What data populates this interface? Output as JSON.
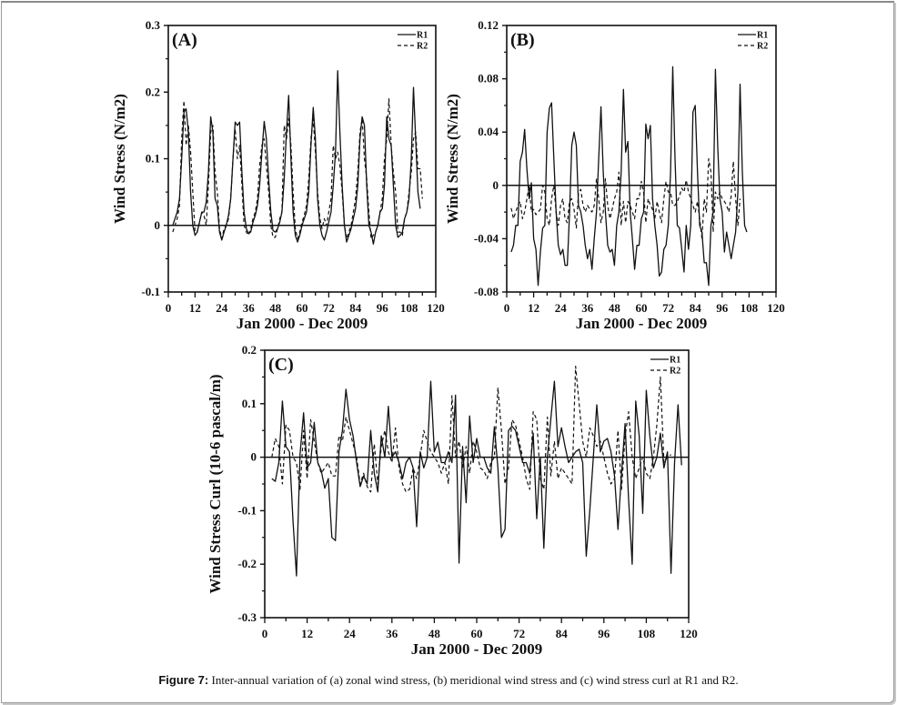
{
  "caption": {
    "figure_label": "Figure 7:",
    "text": " Inter-annual variation of (a) zonal wind stress, (b) meridional wind stress and (c) wind stress curl at R1 and R2."
  },
  "chart_data": [
    {
      "id": "A",
      "type": "line",
      "panel_label": "(A)",
      "title": "",
      "xlabel": "Jan 2000 - Dec 2009",
      "ylabel": "Wind Stress (N/m2)",
      "xlim": [
        0,
        120
      ],
      "ylim": [
        -0.1,
        0.3
      ],
      "xticks": [
        0,
        12,
        24,
        36,
        48,
        60,
        72,
        84,
        96,
        108,
        120
      ],
      "yticks": [
        -0.1,
        0,
        0.1,
        0.2,
        0.3
      ],
      "ytick_labels": [
        "-0.1",
        "0",
        "0.1",
        "0.2",
        "0.3"
      ],
      "zero_line": true,
      "legend": {
        "position": "top-right",
        "entries": [
          {
            "name": "R1",
            "style": "solid"
          },
          {
            "name": "R2",
            "style": "dashed"
          }
        ]
      },
      "series": [
        {
          "name": "R1",
          "style": "solid",
          "x_start": 2,
          "values": [
            0.0,
            0.01,
            0.02,
            0.04,
            0.1,
            0.17,
            0.175,
            0.14,
            0.05,
            0.0,
            -0.015,
            -0.01,
            0.005,
            0.02,
            0.02,
            0.035,
            0.08,
            0.163,
            0.14,
            0.04,
            0.03,
            -0.01,
            -0.022,
            -0.01,
            0.0,
            0.015,
            0.04,
            0.1,
            0.155,
            0.15,
            0.155,
            0.08,
            0.02,
            -0.005,
            -0.012,
            -0.01,
            0.005,
            0.015,
            0.03,
            0.06,
            0.11,
            0.156,
            0.13,
            0.07,
            0.02,
            -0.008,
            -0.01,
            -0.005,
            0.005,
            0.02,
            0.07,
            0.14,
            0.195,
            0.1,
            0.02,
            -0.015,
            -0.025,
            -0.015,
            0.0,
            0.01,
            0.02,
            0.05,
            0.12,
            0.177,
            0.13,
            0.04,
            0.0,
            -0.015,
            -0.022,
            -0.01,
            0.005,
            0.02,
            0.06,
            0.11,
            0.232,
            0.14,
            0.06,
            0.0,
            -0.025,
            -0.015,
            -0.005,
            0.01,
            0.025,
            0.06,
            0.13,
            0.163,
            0.15,
            0.06,
            0.0,
            -0.01,
            -0.028,
            -0.01,
            0.0,
            0.02,
            0.025,
            0.06,
            0.163,
            0.13,
            0.12,
            0.06,
            0.0,
            -0.018,
            -0.015,
            -0.01,
            0.01,
            0.02,
            0.04,
            0.1,
            0.207,
            0.13,
            0.05,
            0.025
          ]
        },
        {
          "name": "R2",
          "style": "dashed",
          "x_start": 2,
          "values": [
            -0.01,
            0.0,
            0.01,
            0.03,
            0.13,
            0.187,
            0.12,
            0.15,
            0.11,
            0.05,
            -0.01,
            -0.01,
            0.005,
            0.02,
            0.015,
            0.0,
            0.06,
            0.14,
            0.15,
            0.08,
            0.05,
            -0.005,
            -0.02,
            -0.005,
            0.0,
            0.01,
            0.04,
            0.1,
            0.145,
            0.1,
            0.12,
            0.06,
            0.0,
            -0.01,
            -0.015,
            -0.005,
            0.01,
            0.02,
            0.04,
            0.09,
            0.12,
            0.13,
            0.09,
            0.05,
            0.0,
            -0.018,
            -0.018,
            -0.005,
            0.01,
            0.02,
            0.15,
            0.13,
            0.16,
            0.12,
            0.05,
            -0.005,
            -0.02,
            -0.01,
            0.005,
            0.015,
            0.03,
            0.07,
            0.13,
            0.16,
            0.11,
            0.05,
            0.01,
            -0.005,
            0.01,
            0.0,
            0.02,
            0.04,
            0.12,
            0.1,
            0.11,
            0.09,
            0.05,
            0.0,
            -0.02,
            -0.01,
            0.0,
            0.02,
            0.04,
            0.08,
            0.14,
            0.16,
            0.1,
            0.07,
            0.02,
            -0.02,
            -0.015,
            -0.01,
            0.0,
            0.02,
            0.04,
            0.1,
            0.13,
            0.19,
            0.12,
            0.08,
            0.05,
            -0.01,
            -0.01,
            -0.015,
            0.01,
            0.02,
            0.05,
            0.08,
            0.13,
            0.14,
            0.085,
            0.085,
            0.04
          ]
        }
      ]
    },
    {
      "id": "B",
      "type": "line",
      "panel_label": "(B)",
      "title": "",
      "xlabel": "Jan 2000 - Dec 2009",
      "ylabel": "Wind Stress (N/m2)",
      "xlim": [
        0,
        120
      ],
      "ylim": [
        -0.08,
        0.12
      ],
      "xticks": [
        0,
        12,
        24,
        36,
        48,
        60,
        72,
        84,
        96,
        108,
        120
      ],
      "yticks": [
        -0.08,
        -0.04,
        0,
        0.04,
        0.08,
        0.12
      ],
      "ytick_labels": [
        "-0.08",
        "-0.04",
        "0",
        "0.04",
        "0.08",
        "0.12"
      ],
      "zero_line": true,
      "legend": {
        "position": "top-right",
        "entries": [
          {
            "name": "R1",
            "style": "solid"
          },
          {
            "name": "R2",
            "style": "dashed"
          }
        ]
      },
      "series": [
        {
          "name": "R1",
          "style": "solid",
          "x_start": 2,
          "values": [
            -0.05,
            -0.045,
            -0.03,
            -0.03,
            0.018,
            0.025,
            0.042,
            0.012,
            -0.01,
            0.002,
            -0.04,
            -0.048,
            -0.075,
            -0.05,
            -0.032,
            -0.03,
            0.04,
            0.058,
            0.062,
            0.02,
            -0.02,
            -0.045,
            -0.052,
            -0.048,
            -0.06,
            -0.06,
            -0.02,
            0.03,
            0.04,
            0.03,
            -0.015,
            -0.02,
            -0.03,
            -0.045,
            -0.055,
            -0.048,
            -0.063,
            -0.04,
            -0.02,
            0.02,
            0.059,
            0.01,
            -0.02,
            -0.045,
            -0.05,
            -0.048,
            -0.06,
            -0.03,
            -0.02,
            0.01,
            0.072,
            0.025,
            0.033,
            -0.02,
            -0.04,
            -0.063,
            -0.045,
            -0.045,
            -0.025,
            -0.02,
            0.046,
            0.035,
            0.045,
            -0.01,
            -0.03,
            -0.045,
            -0.068,
            -0.065,
            -0.048,
            -0.045,
            -0.03,
            0.01,
            0.089,
            0.02,
            -0.03,
            -0.032,
            -0.048,
            -0.065,
            -0.03,
            -0.048,
            -0.03,
            0.055,
            0.06,
            0.01,
            -0.03,
            -0.035,
            -0.058,
            -0.058,
            -0.075,
            -0.03,
            -0.02,
            0.087,
            0.03,
            -0.01,
            -0.02,
            -0.05,
            -0.035,
            -0.045,
            -0.055,
            -0.045,
            -0.035,
            -0.005,
            0.076,
            0.01,
            -0.03,
            -0.035
          ]
        },
        {
          "name": "R2",
          "style": "dashed",
          "x_start": 2,
          "values": [
            -0.017,
            -0.025,
            -0.02,
            -0.015,
            -0.012,
            -0.025,
            -0.02,
            -0.01,
            0.0,
            -0.02,
            -0.018,
            -0.022,
            -0.02,
            -0.018,
            0.0,
            -0.005,
            -0.025,
            -0.03,
            -0.01,
            0.0,
            -0.02,
            -0.03,
            -0.015,
            -0.01,
            -0.025,
            -0.028,
            -0.012,
            -0.01,
            -0.018,
            -0.032,
            -0.005,
            -0.003,
            -0.015,
            -0.02,
            -0.015,
            -0.018,
            -0.02,
            -0.015,
            0.005,
            -0.01,
            -0.028,
            -0.02,
            0.005,
            -0.015,
            -0.025,
            -0.018,
            -0.01,
            -0.005,
            0.01,
            -0.03,
            -0.012,
            -0.028,
            -0.012,
            -0.015,
            -0.02,
            -0.025,
            -0.01,
            -0.01,
            0.003,
            -0.005,
            -0.028,
            -0.01,
            -0.015,
            -0.018,
            -0.025,
            -0.012,
            -0.02,
            -0.028,
            -0.01,
            0.003,
            -0.005,
            -0.005,
            -0.015,
            -0.015,
            -0.012,
            -0.008,
            -0.002,
            -0.005,
            0.004,
            -0.005,
            -0.01,
            -0.015,
            -0.02,
            -0.012,
            -0.025,
            -0.04,
            -0.01,
            -0.02,
            0.02,
            0.01,
            -0.035,
            -0.005,
            -0.01,
            -0.005,
            -0.01,
            -0.012,
            -0.015,
            -0.02,
            -0.008,
            0.018,
            -0.01,
            -0.03,
            -0.01
          ]
        }
      ]
    },
    {
      "id": "C",
      "type": "line",
      "panel_label": "(C)",
      "title": "",
      "xlabel": "Jan 2000 - Dec 2009",
      "ylabel": "Wind Stress Curl (10-6 pascal/m)",
      "xlim": [
        0,
        120
      ],
      "ylim": [
        -0.3,
        0.2
      ],
      "xticks": [
        0,
        12,
        24,
        36,
        48,
        60,
        72,
        84,
        96,
        108,
        120
      ],
      "yticks": [
        -0.3,
        -0.2,
        -0.1,
        0,
        0.1,
        0.2
      ],
      "ytick_labels": [
        "-0.3",
        "-0.2",
        "-0.1",
        "0",
        "0.1",
        "0.2"
      ],
      "zero_line": true,
      "legend": {
        "position": "top-right",
        "entries": [
          {
            "name": "R1",
            "style": "solid"
          },
          {
            "name": "R2",
            "style": "dashed"
          }
        ]
      },
      "series": [
        {
          "name": "R1",
          "style": "solid",
          "x_start": 2,
          "values": [
            -0.04,
            -0.045,
            -0.01,
            0.105,
            0.02,
            0.01,
            -0.12,
            -0.222,
            0.005,
            0.083,
            -0.02,
            -0.01,
            0.065,
            -0.01,
            -0.025,
            -0.058,
            -0.04,
            -0.15,
            -0.156,
            0.01,
            0.05,
            0.127,
            0.07,
            0.04,
            -0.01,
            -0.055,
            -0.035,
            -0.05,
            0.05,
            -0.03,
            -0.065,
            0.04,
            0.0,
            0.095,
            0.0,
            0.01,
            -0.01,
            -0.04,
            -0.01,
            0.0,
            -0.02,
            -0.13,
            0.01,
            -0.02,
            0.0,
            0.142,
            0.01,
            0.028,
            -0.01,
            -0.01,
            0.01,
            -0.01,
            0.116,
            -0.198,
            0.02,
            -0.085,
            0.077,
            -0.01,
            0.035,
            0.0,
            0.0,
            -0.02,
            -0.03,
            0.057,
            -0.02,
            -0.15,
            -0.135,
            0.05,
            0.058,
            0.05,
            0.02,
            -0.01,
            -0.01,
            -0.03,
            0.045,
            -0.115,
            0.0,
            -0.17,
            0.0,
            0.072,
            0.142,
            0.02,
            0.055,
            0.02,
            -0.01,
            0.0,
            0.01,
            0.015,
            -0.01,
            -0.185,
            -0.1,
            0.0,
            0.098,
            0.01,
            0.03,
            0.035,
            0.01,
            -0.035,
            -0.135,
            -0.03,
            0.063,
            -0.08,
            -0.2,
            0.105,
            0.04,
            -0.105,
            0.125,
            0.04,
            -0.02,
            0.0,
            0.045,
            -0.02,
            0.01,
            -0.217,
            -0.01,
            0.098,
            -0.015
          ]
        },
        {
          "name": "R2",
          "style": "dashed",
          "x_start": 2,
          "values": [
            0.0,
            0.035,
            0.02,
            -0.05,
            0.06,
            0.05,
            0.0,
            -0.01,
            -0.06,
            0.05,
            -0.04,
            0.07,
            0.03,
            -0.01,
            -0.03,
            -0.02,
            -0.01,
            -0.035,
            -0.035,
            0.04,
            0.03,
            0.075,
            0.05,
            0.025,
            0.0,
            -0.05,
            -0.03,
            -0.055,
            -0.065,
            0.025,
            -0.05,
            0.02,
            0.05,
            0.01,
            -0.01,
            0.055,
            -0.02,
            -0.05,
            -0.065,
            -0.06,
            -0.02,
            -0.04,
            0.0,
            0.05,
            0.03,
            0.01,
            0.0,
            -0.01,
            -0.03,
            -0.01,
            -0.05,
            0.115,
            0.0,
            0.03,
            -0.02,
            0.02,
            -0.03,
            0.03,
            0.01,
            -0.02,
            -0.025,
            -0.04,
            -0.01,
            0.0,
            0.13,
            0.05,
            -0.05,
            -0.02,
            0.07,
            0.06,
            0.03,
            0.0,
            -0.04,
            -0.06,
            0.085,
            0.07,
            -0.04,
            -0.06,
            0.075,
            -0.035,
            0.03,
            -0.04,
            -0.02,
            -0.03,
            -0.04,
            -0.05,
            0.17,
            0.1,
            0.03,
            0.0,
            0.055,
            0.04,
            0.02,
            0.03,
            0.0,
            -0.03,
            -0.05,
            -0.04,
            0.05,
            -0.06,
            0.04,
            0.085,
            0.0,
            -0.04,
            -0.02,
            0.0,
            -0.03,
            -0.04,
            0.0,
            0.06,
            0.15,
            -0.01,
            0.0,
            0.005
          ]
        }
      ]
    }
  ]
}
